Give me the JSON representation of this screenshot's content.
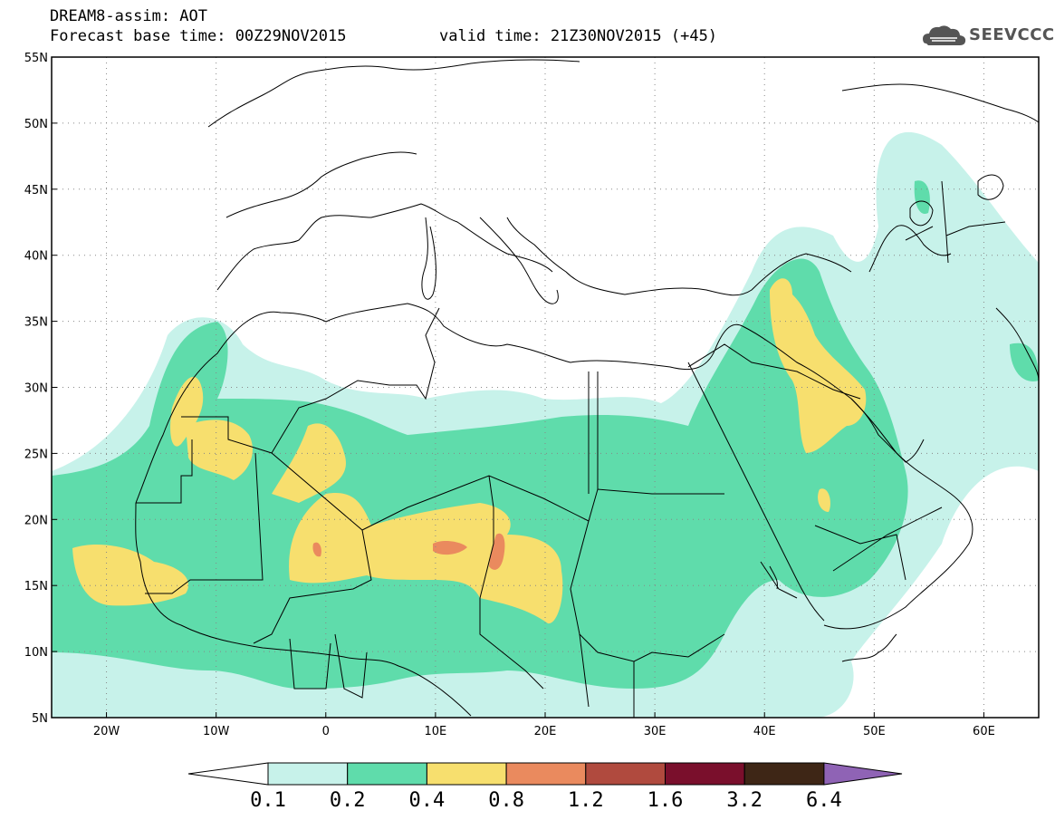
{
  "header": {
    "title": "DREAM8-assim: AOT",
    "base_time": "Forecast base time: 00Z29NOV2015",
    "valid_time": "valid time: 21Z30NOV2015 (+45)",
    "logo_text": "SEEVCCC"
  },
  "map": {
    "lat_labels": [
      "55N",
      "50N",
      "45N",
      "40N",
      "35N",
      "30N",
      "25N",
      "20N",
      "15N",
      "10N",
      "5N"
    ],
    "lon_labels": [
      "20W",
      "10W",
      "0",
      "10E",
      "20E",
      "30E",
      "40E",
      "50E",
      "60E"
    ],
    "lat_range": [
      5,
      55
    ],
    "lon_range": [
      -25,
      65
    ],
    "grid": "dotted"
  },
  "colorbar": {
    "labels": [
      "0.1",
      "0.2",
      "0.4",
      "0.8",
      "1.2",
      "1.6",
      "3.2",
      "6.4"
    ],
    "colors": [
      "#ffffff",
      "#c7f2ea",
      "#5fdcab",
      "#f7df6e",
      "#ea8a5e",
      "#b04a3e",
      "#7a0f2c",
      "#3e2616",
      "#8f63b5"
    ]
  }
}
